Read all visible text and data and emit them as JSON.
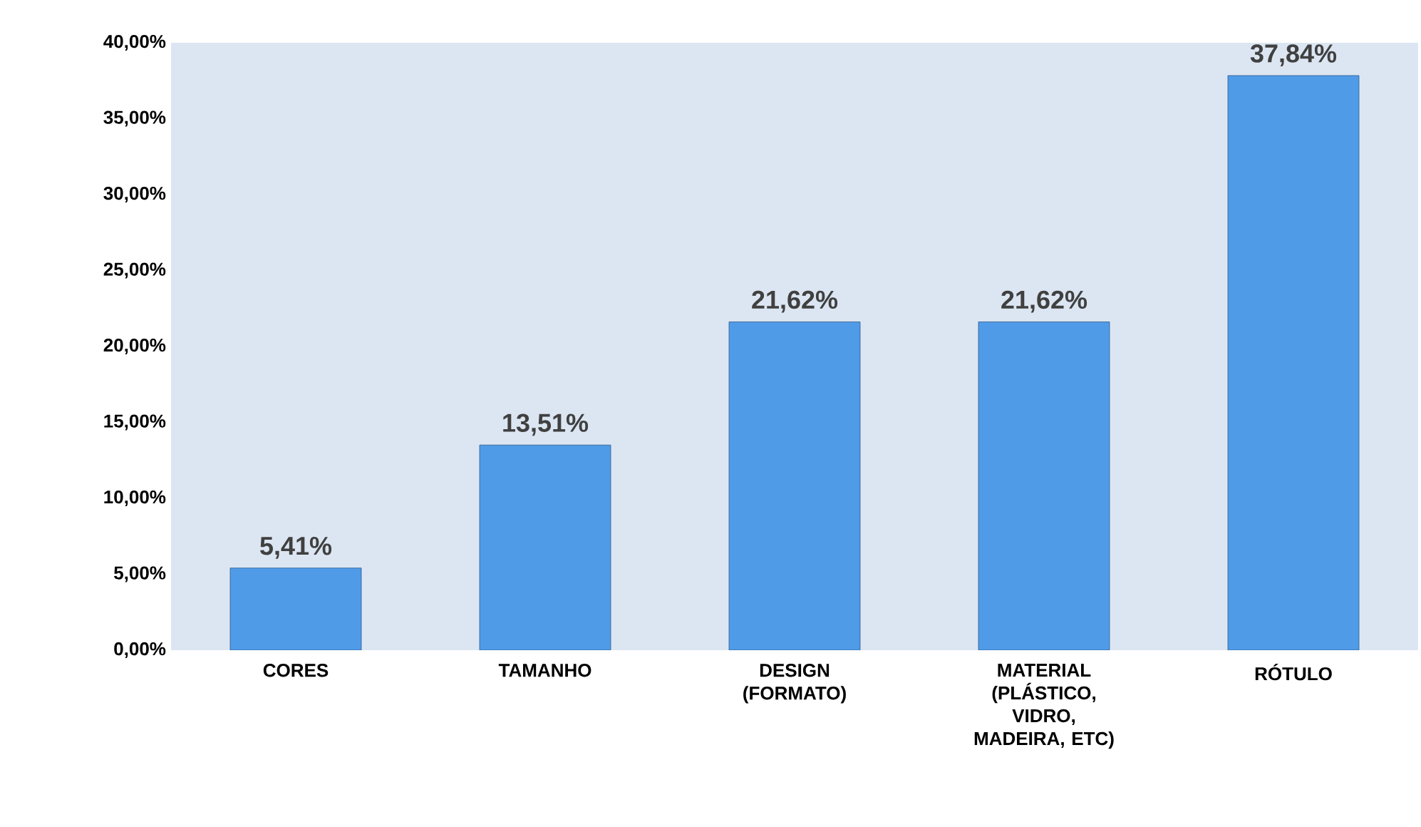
{
  "chart_data": {
    "type": "bar",
    "categories": [
      "CORES",
      "TAMANHO",
      "DESIGN (FORMATO)",
      "MATERIAL (PLÁSTICO, VIDRO, MADEIRA, ETC)",
      "RÓTULO"
    ],
    "values": [
      5.41,
      13.51,
      21.62,
      21.62,
      37.84
    ],
    "value_labels": [
      "5,41%",
      "13,51%",
      "21,62%",
      "21,62%",
      "37,84%"
    ],
    "color": "#4f9be8",
    "ylim": [
      0,
      40
    ],
    "yticks": [
      {
        "value": 0,
        "label": "0,00%"
      },
      {
        "value": 5,
        "label": "5,00%"
      },
      {
        "value": 10,
        "label": "10,00%"
      },
      {
        "value": 15,
        "label": "15,00%"
      },
      {
        "value": 20,
        "label": "20,00%"
      },
      {
        "value": 25,
        "label": "25,00%"
      },
      {
        "value": 30,
        "label": "30,00%"
      },
      {
        "value": 35,
        "label": "35,00%"
      },
      {
        "value": 40,
        "label": "40,00%"
      }
    ],
    "grid": false
  }
}
